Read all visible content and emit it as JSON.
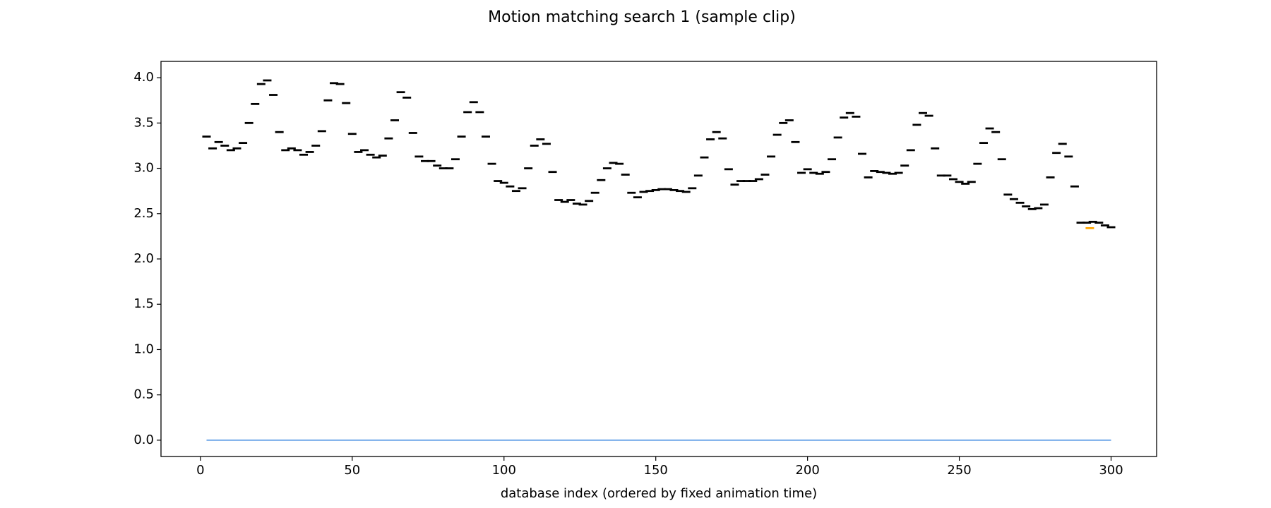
{
  "chart_data": {
    "type": "scatter",
    "title": "Motion matching search 1 (sample clip)",
    "x_label": "database index (ordered by fixed animation time)",
    "xlim": [
      -13,
      315
    ],
    "xticks": [
      0,
      50,
      100,
      150,
      200,
      250,
      300
    ],
    "ylim": [
      -0.18,
      4.18
    ],
    "yticks": [
      {
        "value": 0,
        "label": "0.0"
      },
      {
        "value": 0.5,
        "label": "0.5"
      },
      {
        "value": 1,
        "label": "1.0"
      },
      {
        "value": 1.5,
        "label": "1.5"
      },
      {
        "value": 2,
        "label": "2.0"
      },
      {
        "value": 2.5,
        "label": "2.5"
      },
      {
        "value": 3,
        "label": "3.0"
      },
      {
        "value": 3.5,
        "label": "3.5"
      },
      {
        "value": 4,
        "label": "4.0"
      }
    ],
    "series": [
      {
        "color": "#000000",
        "marker": "dash",
        "x": [
          2,
          4,
          6,
          8,
          10,
          12,
          14,
          16,
          18,
          20,
          22,
          24,
          26,
          28,
          30,
          32,
          34,
          36,
          38,
          40,
          42,
          44,
          46,
          48,
          50,
          52,
          54,
          56,
          58,
          60,
          62,
          64,
          66,
          68,
          70,
          72,
          74,
          76,
          78,
          80,
          82,
          84,
          86,
          88,
          90,
          92,
          94,
          96,
          98,
          100,
          102,
          104,
          106,
          108,
          110,
          112,
          114,
          116,
          118,
          120,
          122,
          124,
          126,
          128,
          130,
          132,
          134,
          136,
          138,
          140,
          142,
          144,
          146,
          148,
          150,
          152,
          154,
          156,
          158,
          160,
          162,
          164,
          166,
          168,
          170,
          172,
          174,
          176,
          178,
          180,
          182,
          184,
          186,
          188,
          190,
          192,
          194,
          196,
          198,
          200,
          202,
          204,
          206,
          208,
          210,
          212,
          214,
          216,
          218,
          220,
          222,
          224,
          226,
          228,
          230,
          232,
          234,
          236,
          238,
          240,
          242,
          244,
          246,
          248,
          250,
          252,
          254,
          256,
          258,
          260,
          262,
          264,
          266,
          268,
          270,
          272,
          274,
          276,
          278,
          280,
          282,
          284,
          286,
          288,
          290,
          292,
          294,
          296,
          298,
          300
        ],
        "values": [
          3.35,
          3.22,
          3.29,
          3.25,
          3.2,
          3.22,
          3.28,
          3.5,
          3.71,
          3.93,
          3.97,
          3.81,
          3.4,
          3.2,
          3.22,
          3.2,
          3.15,
          3.18,
          3.25,
          3.41,
          3.75,
          3.94,
          3.93,
          3.72,
          3.38,
          3.18,
          3.2,
          3.15,
          3.12,
          3.14,
          3.33,
          3.53,
          3.84,
          3.78,
          3.39,
          3.13,
          3.08,
          3.08,
          3.03,
          3.0,
          3.0,
          3.1,
          3.35,
          3.62,
          3.73,
          3.62,
          3.35,
          3.05,
          2.86,
          2.84,
          2.8,
          2.75,
          2.78,
          3.0,
          3.25,
          3.32,
          3.27,
          2.96,
          2.65,
          2.63,
          2.65,
          2.61,
          2.6,
          2.64,
          2.73,
          2.87,
          3.0,
          3.06,
          3.05,
          2.93,
          2.73,
          2.68,
          2.74,
          2.75,
          2.76,
          2.77,
          2.77,
          2.76,
          2.75,
          2.74,
          2.78,
          2.92,
          3.12,
          3.32,
          3.4,
          3.33,
          2.99,
          2.82,
          2.86,
          2.86,
          2.86,
          2.88,
          2.93,
          3.13,
          3.37,
          3.5,
          3.53,
          3.29,
          2.95,
          2.99,
          2.95,
          2.94,
          2.96,
          3.1,
          3.34,
          3.56,
          3.61,
          3.57,
          3.16,
          2.9,
          2.97,
          2.96,
          2.95,
          2.94,
          2.95,
          3.03,
          3.2,
          3.48,
          3.61,
          3.58,
          3.22,
          2.92,
          2.92,
          2.88,
          2.85,
          2.83,
          2.85,
          3.05,
          3.28,
          3.44,
          3.4,
          3.1,
          2.71,
          2.66,
          2.62,
          2.58,
          2.55,
          2.56,
          2.6,
          2.9,
          3.17,
          3.27,
          3.13,
          2.8,
          2.4,
          2.4,
          2.41,
          2.4,
          2.37,
          2.35
        ]
      },
      {
        "color": "#ffa500",
        "marker": "dash",
        "x": [
          293
        ],
        "values": [
          2.34
        ]
      },
      {
        "color": "#4a90e2",
        "marker": "line",
        "x": [
          2,
          300
        ],
        "values": [
          0,
          0
        ]
      }
    ]
  }
}
